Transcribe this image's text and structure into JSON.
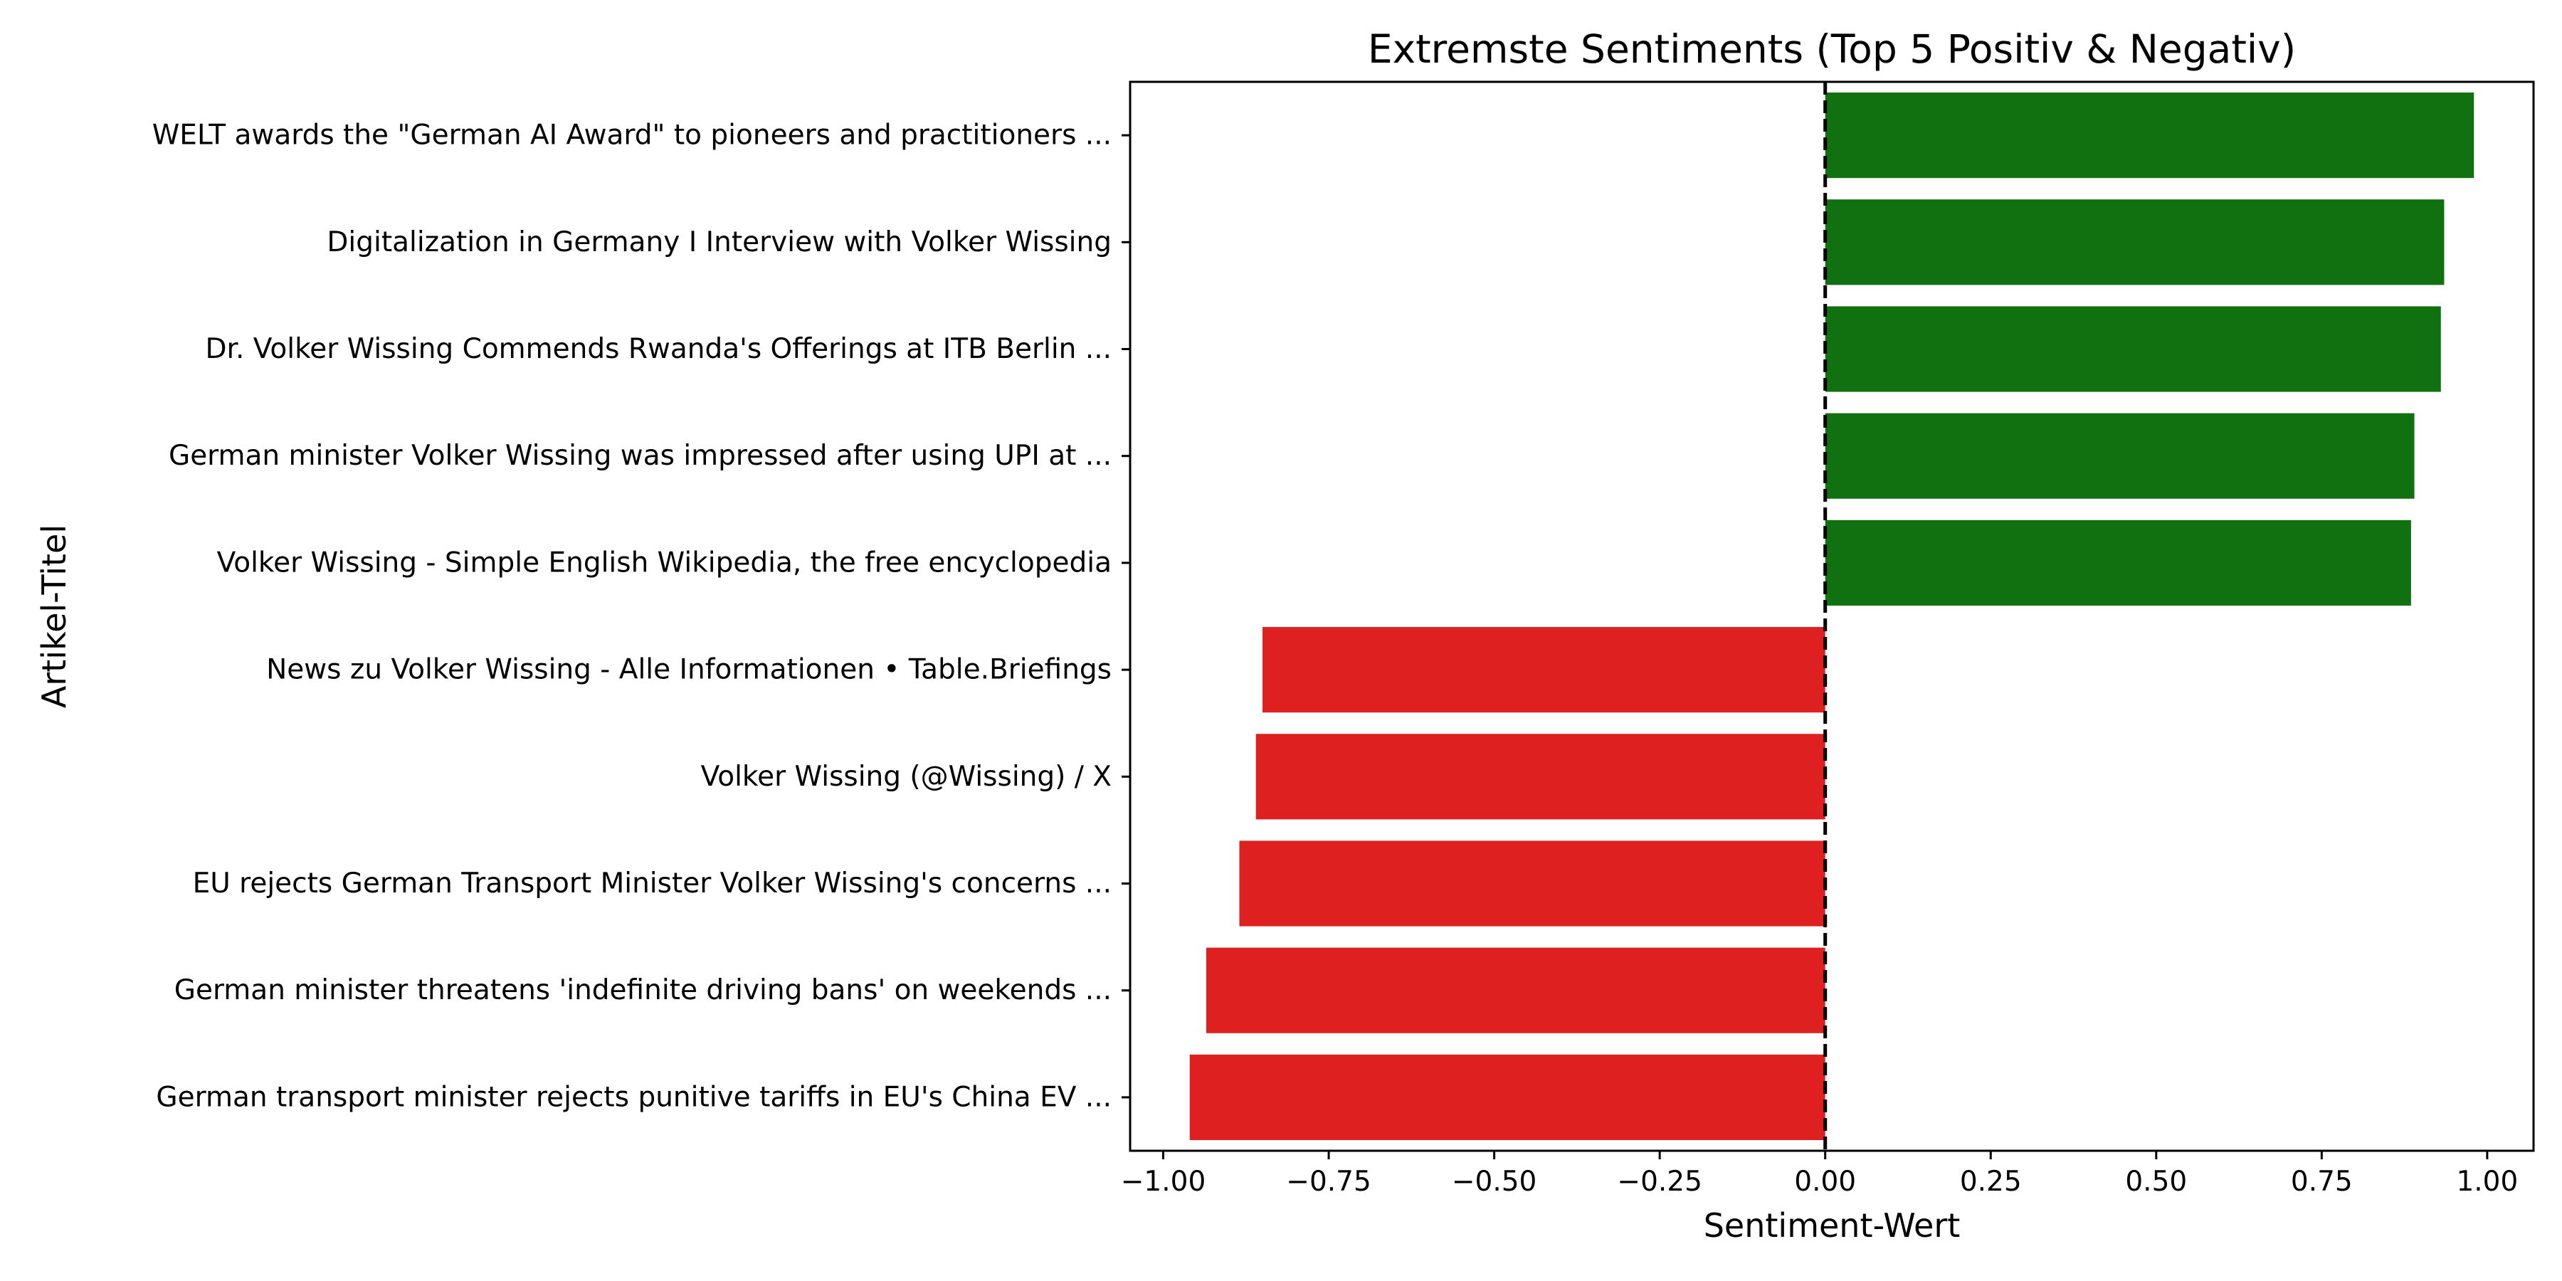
{
  "chart_data": {
    "type": "bar",
    "orientation": "horizontal",
    "title": "Extremste Sentiments (Top 5 Positiv & Negativ)",
    "xlabel": "Sentiment-Wert",
    "ylabel": "Artikel-Titel",
    "xlim": [
      -1.05,
      1.07
    ],
    "xticks": [
      -1.0,
      -0.75,
      -0.5,
      -0.25,
      0.0,
      0.25,
      0.5,
      0.75,
      1.0
    ],
    "xtick_labels": [
      "−1.00",
      "−0.75",
      "−0.50",
      "−0.25",
      "0.00",
      "0.25",
      "0.50",
      "0.75",
      "1.00"
    ],
    "grid": false,
    "reference_line": {
      "x": 0.0,
      "style": "dashed",
      "color": "#000000"
    },
    "colors": {
      "positive": "#117111",
      "negative": "#df2020"
    },
    "categories": [
      "WELT awards the \"German AI Award\" to pioneers and practitioners ...",
      "Digitalization in Germany I Interview with Volker Wissing",
      "Dr. Volker Wissing Commends Rwanda's Offerings at ITB Berlin ...",
      "German minister Volker Wissing was impressed after using UPI at ...",
      "Volker Wissing - Simple English Wikipedia, the free encyclopedia",
      "News zu Volker Wissing - Alle Informationen • Table.Briefings",
      "Volker Wissing (@Wissing) / X",
      "EU rejects German Transport Minister Volker Wissing's concerns ...",
      "German minister threatens 'indefinite driving bans' on weekends ...",
      "German transport minister rejects punitive tariffs in EU's China EV ..."
    ],
    "values": [
      0.98,
      0.935,
      0.93,
      0.89,
      0.885,
      -0.85,
      -0.86,
      -0.885,
      -0.935,
      -0.96
    ]
  }
}
